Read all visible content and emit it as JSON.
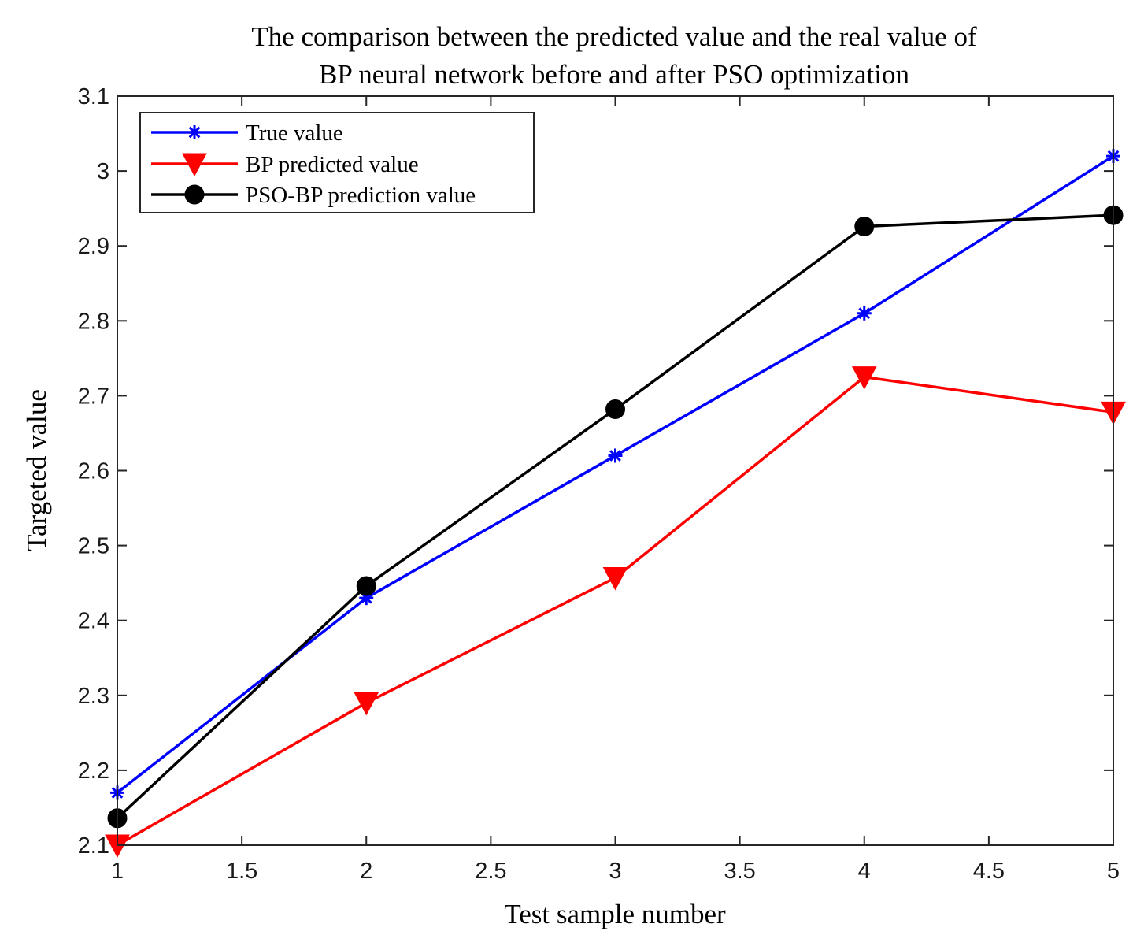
{
  "chart_data": {
    "type": "line",
    "title": [
      "The comparison between the predicted value and the real value of",
      "BP neural network before and after PSO optimization"
    ],
    "xlabel": "Test sample number",
    "ylabel": "Targeted value",
    "xlim": [
      1,
      5
    ],
    "ylim": [
      2.1,
      3.1
    ],
    "xticks": [
      1,
      1.5,
      2,
      2.5,
      3,
      3.5,
      4,
      4.5,
      5
    ],
    "xtick_labels": [
      "1",
      "1.5",
      "2",
      "2.5",
      "3",
      "3.5",
      "4",
      "4.5",
      "5"
    ],
    "yticks": [
      2.1,
      2.2,
      2.3,
      2.4,
      2.5,
      2.6,
      2.7,
      2.8,
      2.9,
      3.0,
      3.1
    ],
    "ytick_labels": [
      "2.1",
      "2.2",
      "2.3",
      "2.4",
      "2.5",
      "2.6",
      "2.7",
      "2.8",
      "2.9",
      "3",
      "3.1"
    ],
    "grid": false,
    "legend_position": "top-left",
    "x": [
      1,
      2,
      3,
      4,
      5
    ],
    "series": [
      {
        "name": "True value",
        "values": [
          2.17,
          2.43,
          2.62,
          2.81,
          3.02
        ],
        "color": "#0000ff",
        "marker": "asterisk"
      },
      {
        "name": "BP predicted value",
        "values": [
          2.1,
          2.29,
          2.457,
          2.725,
          2.678
        ],
        "color": "#ff0000",
        "marker": "triangle-down"
      },
      {
        "name": "PSO-BP prediction value",
        "values": [
          2.136,
          2.446,
          2.682,
          2.926,
          2.941
        ],
        "color": "#000000",
        "marker": "circle"
      }
    ]
  }
}
